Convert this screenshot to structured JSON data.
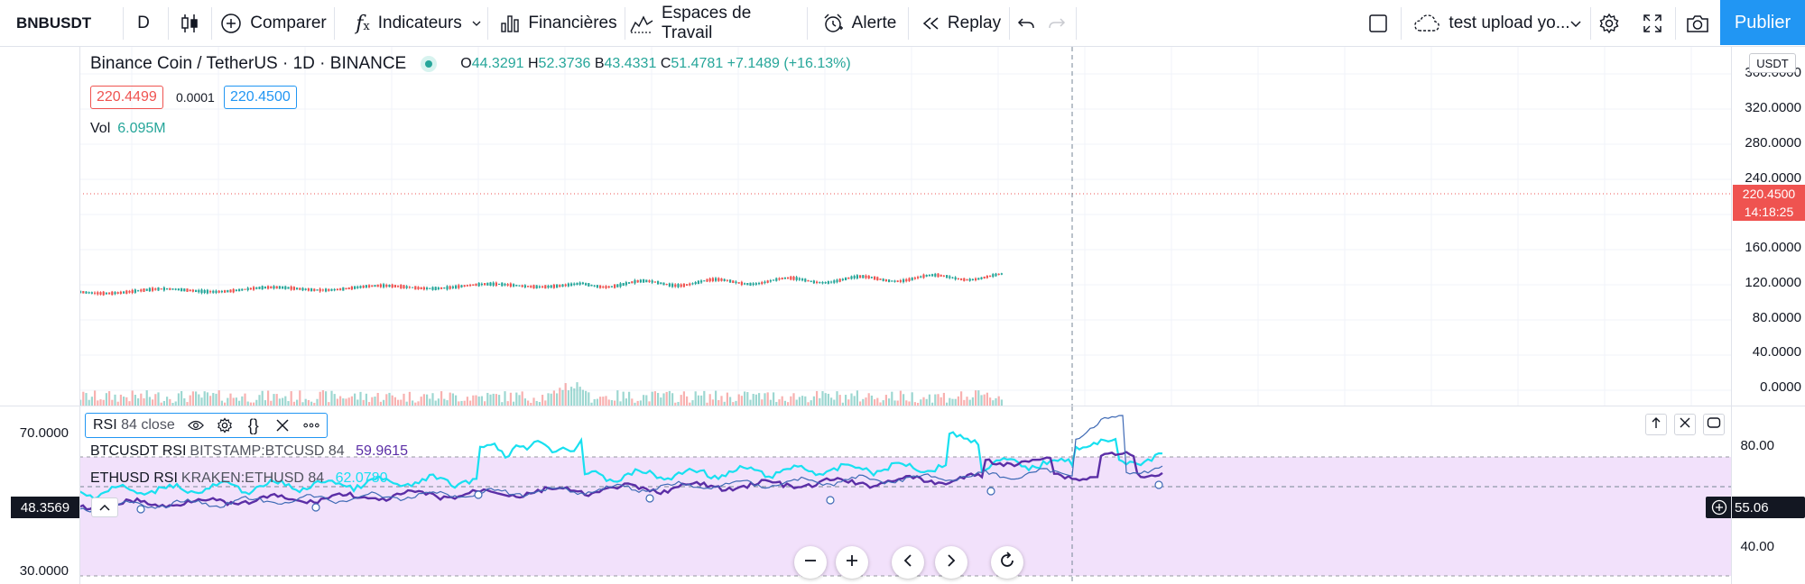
{
  "toolbar": {
    "symbol": "BNBUSDT",
    "interval": "D",
    "compare_label": "Comparer",
    "indicators_label": "Indicateurs",
    "financials_label": "Financières",
    "workspaces_label": "Espaces de Travail",
    "alert_label": "Alerte",
    "replay_label": "Replay",
    "layout_name": "test upload yo...",
    "publish_label": "Publier"
  },
  "legend": {
    "title": "Binance Coin / TetherUS · 1D · BINANCE",
    "open_key": "O",
    "open": "44.3291",
    "high_key": "H",
    "high": "52.3736",
    "low_key": "B",
    "low": "43.4331",
    "close_key": "C",
    "close": "51.4781",
    "change": "+7.1489 (+16.13%)",
    "bid": "220.4499",
    "spread": "0.0001",
    "ask": "220.4500",
    "vol_label": "Vol",
    "vol_value": "6.095M"
  },
  "price_axis": {
    "currency": "USDT",
    "ticks": [
      "360.0000",
      "320.0000",
      "280.0000",
      "240.0000",
      "160.0000",
      "120.0000",
      "80.0000",
      "40.0000",
      "0.0000"
    ],
    "last_price": "220.4500",
    "countdown": "14:18:25"
  },
  "rsi_pane": {
    "indicator_name": "RSI",
    "indicator_params": "84 close",
    "line1_name": "BTCUSDT RSI",
    "line1_source": "BITSTAMP:BTCUSD 84",
    "line1_value": "59.9615",
    "line2_name": "ETHUSD RSI",
    "line2_source": "KRAKEN:ETHUSD 84",
    "line2_value": "62.0780",
    "left_ticks": [
      "70.0000",
      "30.0000"
    ],
    "left_tag": "48.3569",
    "right_ticks": [
      "80.00",
      "40.00"
    ],
    "right_tag": "55.06"
  },
  "colors": {
    "up": "#26a69a",
    "down": "#ef5350",
    "accent": "#2196f3",
    "btc_rsi": "#5b2ea6",
    "eth_rsi": "#18e0f0",
    "bnb_rsi": "#3f6ab5",
    "rsi_band": "#f2e1fb"
  }
}
